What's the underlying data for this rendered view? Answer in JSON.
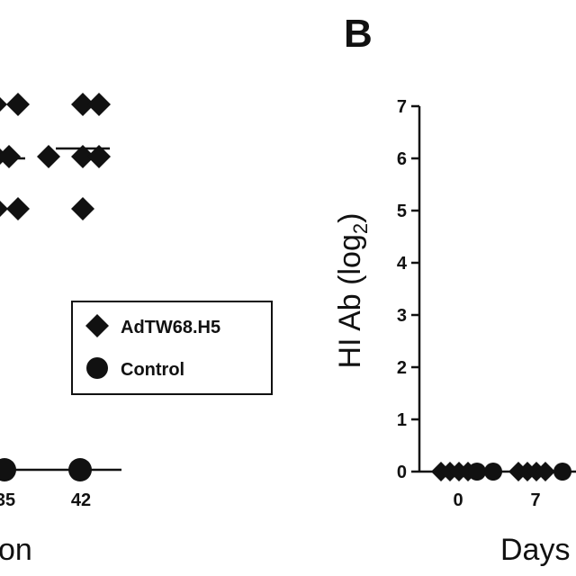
{
  "panel_b_label": "B",
  "chart_data": [
    {
      "type": "scatter",
      "panel": "A",
      "xlabel_fragment": "on",
      "x_tick_labels": [
        "35",
        "42"
      ],
      "legend": {
        "placement": "center-right",
        "entries": [
          {
            "label": "AdTW68.H5",
            "marker": "diamond"
          },
          {
            "label": "Control",
            "marker": "circle"
          }
        ]
      },
      "series": [
        {
          "name": "AdTW68.H5",
          "marker": "diamond",
          "points": [
            {
              "x": "35",
              "y": 7
            },
            {
              "x": "35",
              "y": 7
            },
            {
              "x": "35",
              "y": 6
            },
            {
              "x": "35",
              "y": 6
            },
            {
              "x": "35",
              "y": 6
            },
            {
              "x": "35",
              "y": 5
            },
            {
              "x": "35",
              "y": 5
            },
            {
              "x": "42",
              "y": 7
            },
            {
              "x": "42",
              "y": 7
            },
            {
              "x": "42",
              "y": 6
            },
            {
              "x": "42",
              "y": 6
            },
            {
              "x": "42",
              "y": 5
            }
          ],
          "mean_lines": [
            {
              "x": "35",
              "y": 6
            },
            {
              "x": "42",
              "y": 6.2
            }
          ]
        },
        {
          "name": "Control",
          "marker": "circle",
          "points": [
            {
              "x": "35",
              "y": 0
            },
            {
              "x": "42",
              "y": 0
            }
          ]
        }
      ]
    },
    {
      "type": "scatter",
      "panel": "B",
      "ylabel": "HI Ab (log",
      "ylabel_subscript": "2",
      "ylabel_close": ")",
      "xlabel": "Days",
      "ylim": [
        0,
        7
      ],
      "y_ticks": [
        "0",
        "1",
        "2",
        "3",
        "4",
        "5",
        "6",
        "7"
      ],
      "x_tick_labels": [
        "0",
        "7"
      ],
      "series": [
        {
          "name": "AdTW68.H5",
          "marker": "diamond",
          "points": [
            {
              "x": "0",
              "y": 0
            },
            {
              "x": "0",
              "y": 0
            },
            {
              "x": "0",
              "y": 0
            },
            {
              "x": "0",
              "y": 0
            },
            {
              "x": "7",
              "y": 0
            },
            {
              "x": "7",
              "y": 0
            },
            {
              "x": "7",
              "y": 0
            },
            {
              "x": "7",
              "y": 0
            }
          ]
        },
        {
          "name": "Control",
          "marker": "circle",
          "points": [
            {
              "x": "0",
              "y": 0
            },
            {
              "x": "0",
              "y": 0
            },
            {
              "x": "7",
              "y": 0
            }
          ]
        }
      ]
    }
  ]
}
